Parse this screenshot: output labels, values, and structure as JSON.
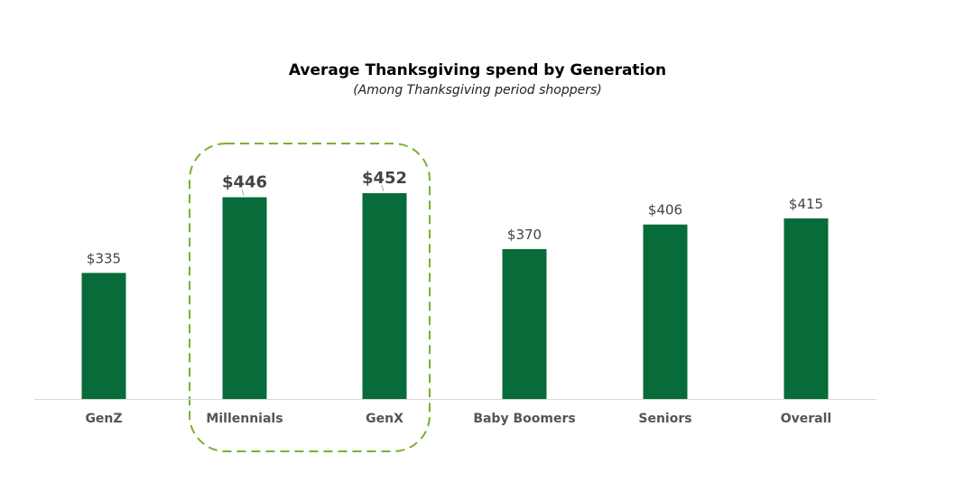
{
  "chart_data": {
    "type": "bar",
    "title": "Average Thanksgiving spend by Generation",
    "subtitle": "(Among Thanksgiving period shoppers)",
    "categories": [
      "GenZ",
      "Millennials",
      "GenX",
      "Baby Boomers",
      "Seniors",
      "Overall"
    ],
    "values": [
      335,
      446,
      452,
      370,
      406,
      415
    ],
    "value_labels": [
      "$335",
      "$446",
      "$452",
      "$370",
      "$406",
      "$415"
    ],
    "highlighted": [
      "Millennials",
      "GenX"
    ],
    "ylim": [
      150,
      460
    ],
    "grid": false,
    "legend": "none",
    "colors": {
      "bar": "#086b3a",
      "highlight": "#7ab030",
      "label": "#444444",
      "axis": "#d9d9d9"
    }
  }
}
